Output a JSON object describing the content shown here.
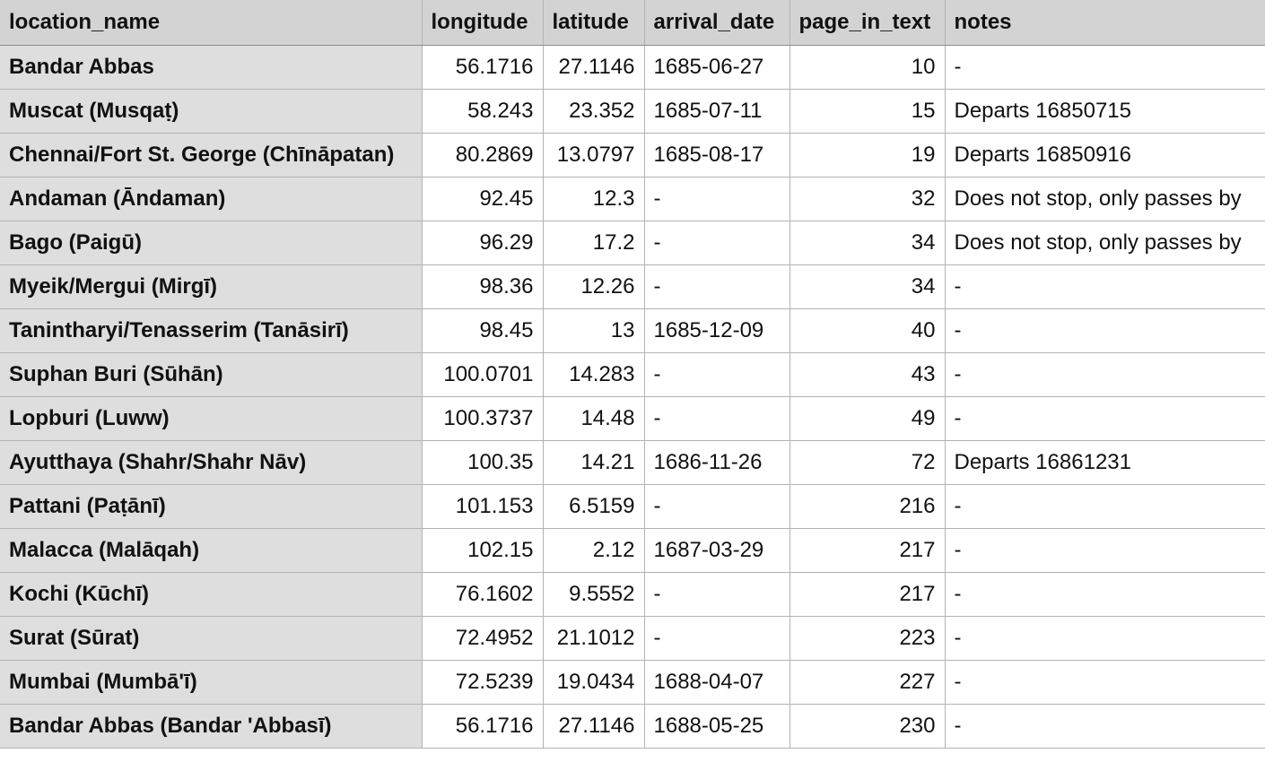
{
  "columns": [
    "location_name",
    "longitude",
    "latitude",
    "arrival_date",
    "page_in_text",
    "notes"
  ],
  "rows": [
    {
      "location_name": "Bandar Abbas",
      "longitude": "56.1716",
      "latitude": "27.1146",
      "arrival_date": "1685-06-27",
      "page_in_text": "10",
      "notes": "-"
    },
    {
      "location_name": "Muscat (Musqaṭ)",
      "longitude": "58.243",
      "latitude": "23.352",
      "arrival_date": "1685-07-11",
      "page_in_text": "15",
      "notes": "Departs 16850715"
    },
    {
      "location_name": "Chennai/Fort St. George (Chīnāpatan)",
      "longitude": "80.2869",
      "latitude": "13.0797",
      "arrival_date": "1685-08-17",
      "page_in_text": "19",
      "notes": "Departs 16850916"
    },
    {
      "location_name": "Andaman (Āndaman)",
      "longitude": "92.45",
      "latitude": "12.3",
      "arrival_date": "-",
      "page_in_text": "32",
      "notes": "Does not stop, only passes by"
    },
    {
      "location_name": "Bago (Paigū)",
      "longitude": "96.29",
      "latitude": "17.2",
      "arrival_date": "-",
      "page_in_text": "34",
      "notes": "Does not stop, only passes by"
    },
    {
      "location_name": "Myeik/Mergui (Mirgī)",
      "longitude": "98.36",
      "latitude": "12.26",
      "arrival_date": "-",
      "page_in_text": "34",
      "notes": "-"
    },
    {
      "location_name": "Tanintharyi/Tenasserim (Tanāsirī)",
      "longitude": "98.45",
      "latitude": "13",
      "arrival_date": "1685-12-09",
      "page_in_text": "40",
      "notes": "-"
    },
    {
      "location_name": "Suphan Buri (Sūhān)",
      "longitude": "100.0701",
      "latitude": "14.283",
      "arrival_date": "-",
      "page_in_text": "43",
      "notes": "-"
    },
    {
      "location_name": "Lopburi (Luww)",
      "longitude": "100.3737",
      "latitude": "14.48",
      "arrival_date": "-",
      "page_in_text": "49",
      "notes": "-"
    },
    {
      "location_name": "Ayutthaya (Shahr/Shahr Nāv)",
      "longitude": "100.35",
      "latitude": "14.21",
      "arrival_date": "1686-11-26",
      "page_in_text": "72",
      "notes": "Departs 16861231"
    },
    {
      "location_name": "Pattani (Paṭānī)",
      "longitude": "101.153",
      "latitude": "6.5159",
      "arrival_date": "-",
      "page_in_text": "216",
      "notes": "-"
    },
    {
      "location_name": "Malacca (Malāqah)",
      "longitude": "102.15",
      "latitude": "2.12",
      "arrival_date": "1687-03-29",
      "page_in_text": "217",
      "notes": "-"
    },
    {
      "location_name": "Kochi (Kūchī)",
      "longitude": "76.1602",
      "latitude": "9.5552",
      "arrival_date": "-",
      "page_in_text": "217",
      "notes": "-"
    },
    {
      "location_name": "Surat (Sūrat)",
      "longitude": "72.4952",
      "latitude": "21.1012",
      "arrival_date": "-",
      "page_in_text": "223",
      "notes": "-"
    },
    {
      "location_name": "Mumbai (Mumbā'ī)",
      "longitude": "72.5239",
      "latitude": "19.0434",
      "arrival_date": "1688-04-07",
      "page_in_text": "227",
      "notes": "-"
    },
    {
      "location_name": "Bandar Abbas (Bandar 'Abbasī)",
      "longitude": "56.1716",
      "latitude": "27.1146",
      "arrival_date": "1688-05-25",
      "page_in_text": "230",
      "notes": "-"
    }
  ]
}
